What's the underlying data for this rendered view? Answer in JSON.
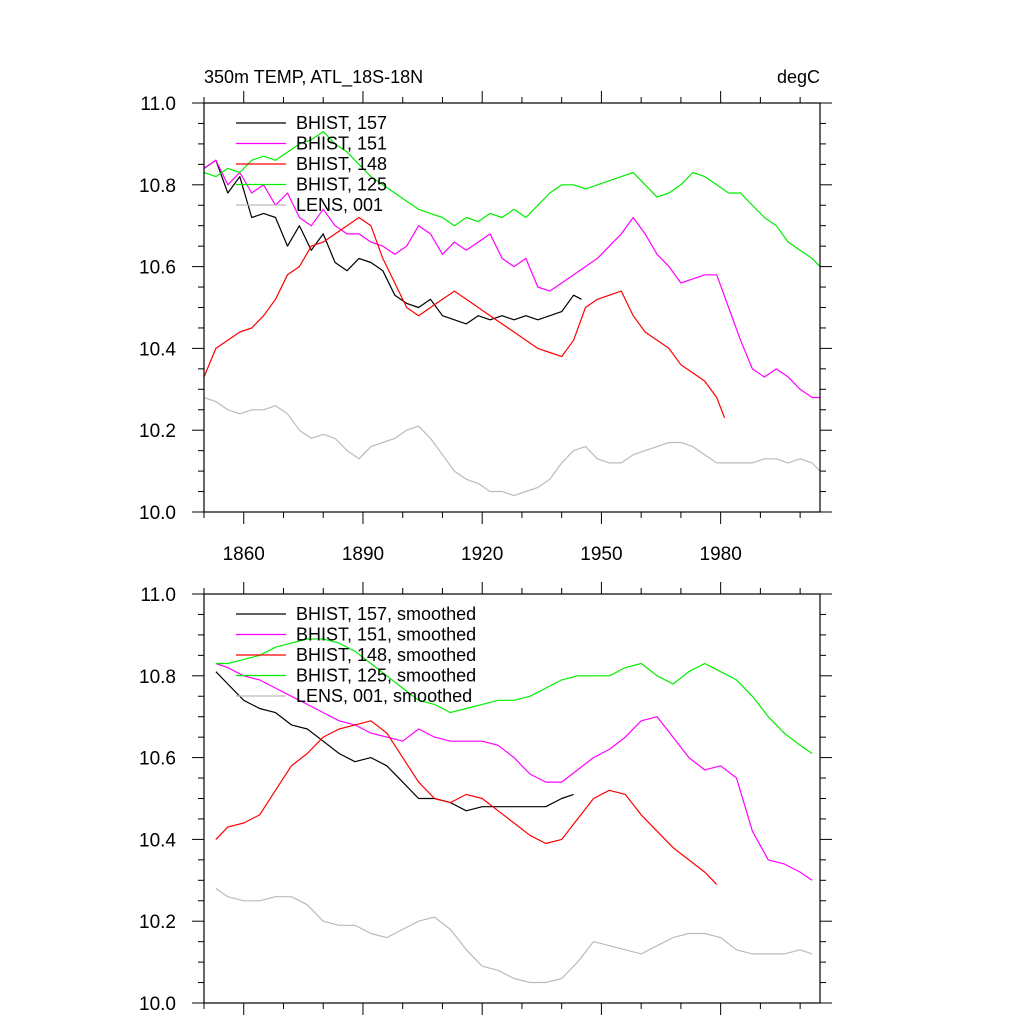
{
  "chart_data": [
    {
      "type": "line",
      "title": "350m TEMP, ATL_18S-18N",
      "units": "degC",
      "xlim": [
        1850,
        2005
      ],
      "ylim": [
        10.0,
        11.0
      ],
      "x_ticks": [
        1860,
        1890,
        1920,
        1950,
        1980
      ],
      "x_tick_labels": [
        "1860",
        "1890",
        "1920",
        "1950",
        "1980"
      ],
      "y_ticks": [
        10.0,
        10.2,
        10.4,
        10.6,
        10.8,
        11.0
      ],
      "y_tick_labels": [
        "10.0",
        "10.2",
        "10.4",
        "10.6",
        "10.8",
        "11.0"
      ],
      "legend_position": "top-left",
      "series": [
        {
          "name": "BHIST, 157",
          "color": "#000000",
          "x": [
            1850,
            1853,
            1856,
            1859,
            1862,
            1865,
            1868,
            1871,
            1874,
            1877,
            1880,
            1883,
            1886,
            1889,
            1892,
            1895,
            1898,
            1901,
            1904,
            1907,
            1910,
            1913,
            1916,
            1919,
            1922,
            1925,
            1928,
            1931,
            1934,
            1937,
            1940,
            1943,
            1945
          ],
          "y": [
            10.84,
            10.86,
            10.78,
            10.82,
            10.72,
            10.73,
            10.72,
            10.65,
            10.7,
            10.64,
            10.68,
            10.61,
            10.59,
            10.62,
            10.61,
            10.59,
            10.53,
            10.51,
            10.5,
            10.52,
            10.48,
            10.47,
            10.46,
            10.48,
            10.47,
            10.48,
            10.47,
            10.48,
            10.47,
            10.48,
            10.49,
            10.53,
            10.52
          ]
        },
        {
          "name": "BHIST, 151",
          "color": "#ff00ff",
          "x": [
            1850,
            1853,
            1856,
            1859,
            1862,
            1865,
            1868,
            1871,
            1874,
            1877,
            1880,
            1883,
            1886,
            1889,
            1892,
            1895,
            1898,
            1901,
            1904,
            1907,
            1910,
            1913,
            1916,
            1919,
            1922,
            1925,
            1928,
            1931,
            1934,
            1937,
            1940,
            1943,
            1946,
            1949,
            1952,
            1955,
            1958,
            1961,
            1964,
            1967,
            1970,
            1973,
            1976,
            1979,
            1982,
            1985,
            1988,
            1991,
            1994,
            1997,
            2000,
            2003,
            2005
          ],
          "y": [
            10.84,
            10.86,
            10.8,
            10.83,
            10.78,
            10.8,
            10.75,
            10.78,
            10.72,
            10.7,
            10.74,
            10.7,
            10.68,
            10.68,
            10.66,
            10.65,
            10.63,
            10.65,
            10.7,
            10.68,
            10.63,
            10.66,
            10.64,
            10.66,
            10.68,
            10.62,
            10.6,
            10.62,
            10.55,
            10.54,
            10.56,
            10.58,
            10.6,
            10.62,
            10.65,
            10.68,
            10.72,
            10.68,
            10.63,
            10.6,
            10.56,
            10.57,
            10.58,
            10.58,
            10.5,
            10.42,
            10.35,
            10.33,
            10.35,
            10.33,
            10.3,
            10.28,
            10.28
          ]
        },
        {
          "name": "BHIST, 148",
          "color": "#ff0000",
          "x": [
            1850,
            1853,
            1856,
            1859,
            1862,
            1865,
            1868,
            1871,
            1874,
            1877,
            1880,
            1883,
            1886,
            1889,
            1892,
            1895,
            1898,
            1901,
            1904,
            1907,
            1910,
            1913,
            1916,
            1919,
            1922,
            1925,
            1928,
            1931,
            1934,
            1937,
            1940,
            1943,
            1946,
            1949,
            1952,
            1955,
            1958,
            1961,
            1964,
            1967,
            1970,
            1973,
            1976,
            1979,
            1981
          ],
          "y": [
            10.33,
            10.4,
            10.42,
            10.44,
            10.45,
            10.48,
            10.52,
            10.58,
            10.6,
            10.65,
            10.66,
            10.68,
            10.7,
            10.72,
            10.7,
            10.62,
            10.56,
            10.5,
            10.48,
            10.5,
            10.52,
            10.54,
            10.52,
            10.5,
            10.48,
            10.46,
            10.44,
            10.42,
            10.4,
            10.39,
            10.38,
            10.42,
            10.5,
            10.52,
            10.53,
            10.54,
            10.48,
            10.44,
            10.42,
            10.4,
            10.36,
            10.34,
            10.32,
            10.28,
            10.23
          ]
        },
        {
          "name": "BHIST, 125",
          "color": "#00ee00",
          "x": [
            1850,
            1853,
            1856,
            1859,
            1862,
            1865,
            1868,
            1871,
            1874,
            1877,
            1880,
            1883,
            1886,
            1889,
            1892,
            1895,
            1898,
            1901,
            1904,
            1907,
            1910,
            1913,
            1916,
            1919,
            1922,
            1925,
            1928,
            1931,
            1934,
            1937,
            1940,
            1943,
            1946,
            1949,
            1952,
            1955,
            1958,
            1961,
            1964,
            1967,
            1970,
            1973,
            1976,
            1979,
            1982,
            1985,
            1988,
            1991,
            1994,
            1997,
            2000,
            2003,
            2005
          ],
          "y": [
            10.83,
            10.82,
            10.84,
            10.83,
            10.86,
            10.87,
            10.86,
            10.88,
            10.9,
            10.91,
            10.93,
            10.9,
            10.88,
            10.85,
            10.82,
            10.8,
            10.78,
            10.76,
            10.74,
            10.73,
            10.72,
            10.7,
            10.72,
            10.71,
            10.73,
            10.72,
            10.74,
            10.72,
            10.75,
            10.78,
            10.8,
            10.8,
            10.79,
            10.8,
            10.81,
            10.82,
            10.83,
            10.8,
            10.77,
            10.78,
            10.8,
            10.83,
            10.82,
            10.8,
            10.78,
            10.78,
            10.75,
            10.72,
            10.7,
            10.66,
            10.64,
            10.62,
            10.6
          ]
        },
        {
          "name": "LENS, 001",
          "color": "#bbbbbb",
          "x": [
            1850,
            1853,
            1856,
            1859,
            1862,
            1865,
            1868,
            1871,
            1874,
            1877,
            1880,
            1883,
            1886,
            1889,
            1892,
            1895,
            1898,
            1901,
            1904,
            1907,
            1910,
            1913,
            1916,
            1919,
            1922,
            1925,
            1928,
            1931,
            1934,
            1937,
            1940,
            1943,
            1946,
            1949,
            1952,
            1955,
            1958,
            1961,
            1964,
            1967,
            1970,
            1973,
            1976,
            1979,
            1982,
            1985,
            1988,
            1991,
            1994,
            1997,
            2000,
            2003,
            2005
          ],
          "y": [
            10.28,
            10.27,
            10.25,
            10.24,
            10.25,
            10.25,
            10.26,
            10.24,
            10.2,
            10.18,
            10.19,
            10.18,
            10.15,
            10.13,
            10.16,
            10.17,
            10.18,
            10.2,
            10.21,
            10.18,
            10.14,
            10.1,
            10.08,
            10.07,
            10.05,
            10.05,
            10.04,
            10.05,
            10.06,
            10.08,
            10.12,
            10.15,
            10.16,
            10.13,
            10.12,
            10.12,
            10.14,
            10.15,
            10.16,
            10.17,
            10.17,
            10.16,
            10.14,
            10.12,
            10.12,
            10.12,
            10.12,
            10.13,
            10.13,
            10.12,
            10.13,
            10.12,
            10.1
          ]
        }
      ]
    },
    {
      "type": "line",
      "xlim": [
        1850,
        2005
      ],
      "ylim": [
        10.0,
        11.0
      ],
      "x_ticks": [
        1860,
        1890,
        1920,
        1950,
        1980
      ],
      "y_ticks": [
        10.0,
        10.2,
        10.4,
        10.6,
        10.8,
        11.0
      ],
      "y_tick_labels": [
        "10.0",
        "10.2",
        "10.4",
        "10.6",
        "10.8",
        "11.0"
      ],
      "legend_position": "top-left",
      "series": [
        {
          "name": "BHIST, 157, smoothed",
          "color": "#000000",
          "x": [
            1853,
            1856,
            1860,
            1864,
            1868,
            1872,
            1876,
            1880,
            1884,
            1888,
            1892,
            1896,
            1900,
            1904,
            1908,
            1912,
            1916,
            1920,
            1924,
            1928,
            1932,
            1936,
            1940,
            1943
          ],
          "y": [
            10.81,
            10.78,
            10.74,
            10.72,
            10.71,
            10.68,
            10.67,
            10.64,
            10.61,
            10.59,
            10.6,
            10.58,
            10.54,
            10.5,
            10.5,
            10.49,
            10.47,
            10.48,
            10.48,
            10.48,
            10.48,
            10.48,
            10.5,
            10.51
          ]
        },
        {
          "name": "BHIST, 151, smoothed",
          "color": "#ff00ff",
          "x": [
            1853,
            1856,
            1860,
            1864,
            1868,
            1872,
            1876,
            1880,
            1884,
            1888,
            1892,
            1896,
            1900,
            1904,
            1908,
            1912,
            1916,
            1920,
            1924,
            1928,
            1932,
            1936,
            1940,
            1944,
            1948,
            1952,
            1956,
            1960,
            1964,
            1968,
            1972,
            1976,
            1980,
            1984,
            1988,
            1992,
            1996,
            2000,
            2003
          ],
          "y": [
            10.83,
            10.82,
            10.8,
            10.79,
            10.77,
            10.75,
            10.73,
            10.71,
            10.69,
            10.68,
            10.66,
            10.65,
            10.64,
            10.67,
            10.65,
            10.64,
            10.64,
            10.64,
            10.63,
            10.6,
            10.56,
            10.54,
            10.54,
            10.57,
            10.6,
            10.62,
            10.65,
            10.69,
            10.7,
            10.65,
            10.6,
            10.57,
            10.58,
            10.55,
            10.42,
            10.35,
            10.34,
            10.32,
            10.3
          ]
        },
        {
          "name": "BHIST, 148, smoothed",
          "color": "#ff0000",
          "x": [
            1853,
            1856,
            1860,
            1864,
            1868,
            1872,
            1876,
            1880,
            1884,
            1888,
            1892,
            1896,
            1900,
            1904,
            1908,
            1912,
            1916,
            1920,
            1924,
            1928,
            1932,
            1936,
            1940,
            1944,
            1948,
            1952,
            1956,
            1960,
            1964,
            1968,
            1972,
            1976,
            1979
          ],
          "y": [
            10.4,
            10.43,
            10.44,
            10.46,
            10.52,
            10.58,
            10.61,
            10.65,
            10.67,
            10.68,
            10.69,
            10.66,
            10.6,
            10.54,
            10.5,
            10.49,
            10.51,
            10.5,
            10.47,
            10.44,
            10.41,
            10.39,
            10.4,
            10.45,
            10.5,
            10.52,
            10.51,
            10.46,
            10.42,
            10.38,
            10.35,
            10.32,
            10.29
          ]
        },
        {
          "name": "BHIST, 125, smoothed",
          "color": "#00ee00",
          "x": [
            1853,
            1856,
            1860,
            1864,
            1868,
            1872,
            1876,
            1880,
            1884,
            1888,
            1892,
            1896,
            1900,
            1904,
            1908,
            1912,
            1916,
            1920,
            1924,
            1928,
            1932,
            1936,
            1940,
            1944,
            1948,
            1952,
            1956,
            1960,
            1964,
            1968,
            1972,
            1976,
            1980,
            1984,
            1988,
            1992,
            1996,
            2000,
            2003
          ],
          "y": [
            10.83,
            10.83,
            10.84,
            10.85,
            10.87,
            10.88,
            10.89,
            10.89,
            10.88,
            10.86,
            10.83,
            10.8,
            10.77,
            10.74,
            10.73,
            10.71,
            10.72,
            10.73,
            10.74,
            10.74,
            10.75,
            10.77,
            10.79,
            10.8,
            10.8,
            10.8,
            10.82,
            10.83,
            10.8,
            10.78,
            10.81,
            10.83,
            10.81,
            10.79,
            10.75,
            10.7,
            10.66,
            10.63,
            10.61
          ]
        },
        {
          "name": "LENS, 001, smoothed",
          "color": "#bbbbbb",
          "x": [
            1853,
            1856,
            1860,
            1864,
            1868,
            1872,
            1876,
            1880,
            1884,
            1888,
            1892,
            1896,
            1900,
            1904,
            1908,
            1912,
            1916,
            1920,
            1924,
            1928,
            1932,
            1936,
            1940,
            1944,
            1948,
            1952,
            1956,
            1960,
            1964,
            1968,
            1972,
            1976,
            1980,
            1984,
            1988,
            1992,
            1996,
            2000,
            2003
          ],
          "y": [
            10.28,
            10.26,
            10.25,
            10.25,
            10.26,
            10.26,
            10.24,
            10.2,
            10.19,
            10.19,
            10.17,
            10.16,
            10.18,
            10.2,
            10.21,
            10.18,
            10.13,
            10.09,
            10.08,
            10.06,
            10.05,
            10.05,
            10.06,
            10.1,
            10.15,
            10.14,
            10.13,
            10.12,
            10.14,
            10.16,
            10.17,
            10.17,
            10.16,
            10.13,
            10.12,
            10.12,
            10.12,
            10.13,
            10.12
          ]
        }
      ]
    }
  ]
}
